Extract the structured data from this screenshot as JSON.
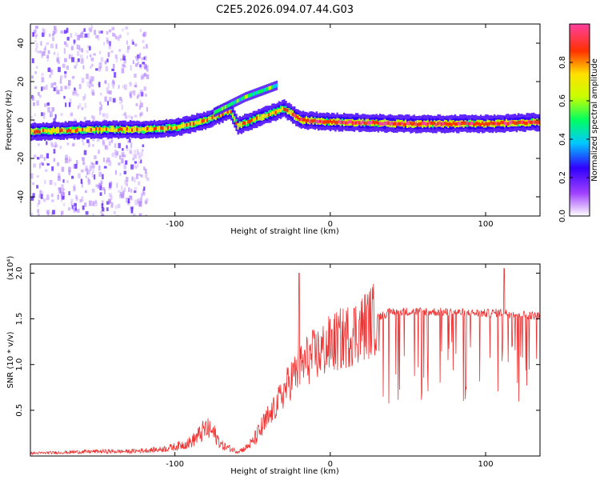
{
  "title": "C2E5.2026.094.07.44.G03",
  "chart_data": [
    {
      "type": "heatmap",
      "name": "spectrogram",
      "xlabel": "Height of straight line (km)",
      "ylabel": "Frequency (Hz)",
      "xlim": [
        -193,
        135
      ],
      "ylim": [
        -50,
        50
      ],
      "xticks": [
        -100,
        0,
        100
      ],
      "xtick_labels": [
        "-100",
        "0",
        "100"
      ],
      "yticks": [
        -40,
        -20,
        0,
        20,
        40
      ],
      "ytick_labels": [
        "-40",
        "-20",
        "0",
        "20",
        "40"
      ],
      "ridge": {
        "description": "dominant spectral ridge frequency (Hz) vs height (km)",
        "x": [
          -193,
          -150,
          -120,
          -100,
          -80,
          -65,
          -60,
          -50,
          -40,
          -30,
          -20,
          0,
          50,
          100,
          135
        ],
        "y": [
          -6,
          -5,
          -5,
          -4,
          0,
          5,
          -3,
          0,
          3,
          6,
          0,
          -1,
          -2,
          -2,
          -1
        ]
      },
      "branch": {
        "description": "secondary rising branch",
        "x": [
          -75,
          -65,
          -55,
          -45,
          -35
        ],
        "y": [
          4,
          8,
          12,
          15,
          18
        ]
      },
      "colorbar": {
        "label": "Normalized spectral amplitude",
        "range": [
          0,
          1
        ],
        "ticks": [
          0.0,
          0.2,
          0.4,
          0.6,
          0.8
        ],
        "tick_labels": [
          "0.0",
          "0.2",
          "0.4",
          "0.6",
          "0.8"
        ],
        "colors": [
          "#ffffff",
          "#a040ff",
          "#3000ff",
          "#00c8ff",
          "#00ff60",
          "#c8ff00",
          "#ffe000",
          "#ff3000",
          "#ff40a0"
        ]
      }
    },
    {
      "type": "line",
      "name": "snr",
      "xlabel": "Height of straight line (km)",
      "ylabel": "SNR (10 * v/v)",
      "scale_label": "(x10⁴)",
      "xlim": [
        -193,
        135
      ],
      "ylim": [
        0,
        2.1
      ],
      "xticks": [
        -100,
        0,
        100
      ],
      "xtick_labels": [
        "-100",
        "0",
        "100"
      ],
      "yticks": [
        0.5,
        1.0,
        1.5,
        2.0
      ],
      "ytick_labels": [
        "0.5",
        "1.0",
        "1.5",
        "2.0"
      ],
      "color": "#ee3333",
      "series": [
        {
          "name": "SNR",
          "x": [
            -193,
            -170,
            -150,
            -130,
            -110,
            -100,
            -90,
            -85,
            -80,
            -75,
            -70,
            -60,
            -55,
            -50,
            -45,
            -40,
            -35,
            -30,
            -25,
            -20,
            -15,
            -10,
            -5,
            0,
            10,
            20,
            30,
            40,
            60,
            80,
            100,
            110,
            120,
            135
          ],
          "y": [
            0.03,
            0.04,
            0.05,
            0.05,
            0.07,
            0.1,
            0.15,
            0.22,
            0.3,
            0.25,
            0.12,
            0.05,
            0.08,
            0.15,
            0.28,
            0.4,
            0.55,
            0.7,
            0.85,
            0.95,
            1.05,
            1.1,
            1.15,
            1.22,
            1.3,
            1.4,
            1.52,
            1.58,
            1.58,
            1.57,
            1.56,
            1.57,
            1.55,
            1.53
          ]
        }
      ],
      "spikes": [
        {
          "x": -20,
          "y": 2.0
        },
        {
          "x": 112,
          "y": 2.05
        }
      ]
    }
  ]
}
